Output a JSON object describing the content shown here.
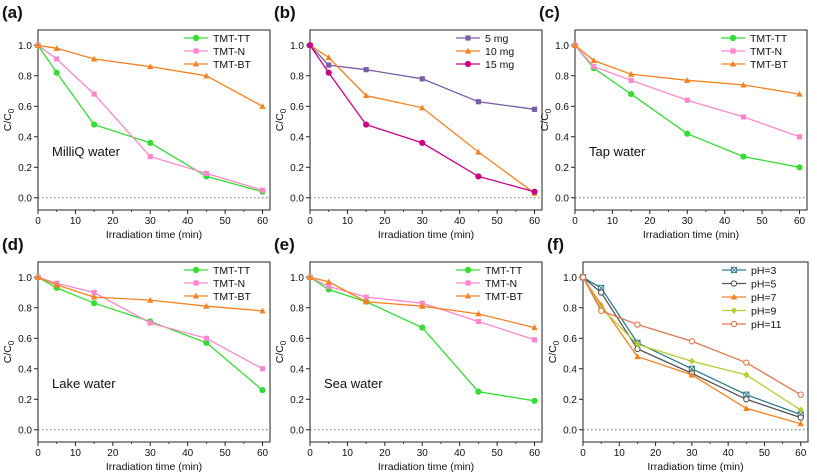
{
  "chart_data": [
    {
      "type": "line",
      "panel_label": "(a)",
      "annotation": "MilliQ water",
      "xlabel": "Irradiation time (min)",
      "ylabel": "C/C",
      "ylabel_sub": "0",
      "xlim": [
        0,
        62
      ],
      "ylim": [
        -0.08,
        1.1
      ],
      "xticks": [
        0,
        10,
        20,
        30,
        40,
        50,
        60
      ],
      "yticks": [
        0.0,
        0.2,
        0.4,
        0.6,
        0.8,
        1.0
      ],
      "reference_line": 0,
      "legend_position": "top-right",
      "series": [
        {
          "name": "TMT-TT",
          "color": "#33dd33",
          "marker": "circle",
          "x": [
            0,
            5,
            15,
            30,
            45,
            60
          ],
          "y": [
            1.0,
            0.82,
            0.48,
            0.36,
            0.14,
            0.04
          ]
        },
        {
          "name": "TMT-N",
          "color": "#ff88cc",
          "marker": "square",
          "x": [
            0,
            5,
            15,
            30,
            45,
            60
          ],
          "y": [
            1.0,
            0.91,
            0.68,
            0.27,
            0.16,
            0.05
          ]
        },
        {
          "name": "TMT-BT",
          "color": "#f58220",
          "marker": "triangle",
          "x": [
            0,
            5,
            15,
            30,
            45,
            60
          ],
          "y": [
            1.0,
            0.98,
            0.91,
            0.86,
            0.8,
            0.6
          ]
        }
      ]
    },
    {
      "type": "line",
      "panel_label": "(b)",
      "annotation": "",
      "xlabel": "Irradiation time (min)",
      "ylabel": "C/C",
      "ylabel_sub": "0",
      "xlim": [
        0,
        62
      ],
      "ylim": [
        -0.08,
        1.1
      ],
      "xticks": [
        0,
        10,
        20,
        30,
        40,
        50,
        60
      ],
      "yticks": [
        0.0,
        0.2,
        0.4,
        0.6,
        0.8,
        1.0
      ],
      "reference_line": 0,
      "legend_position": "top-right",
      "series": [
        {
          "name": "5 mg",
          "color": "#7b5ea7",
          "marker": "square",
          "x": [
            0,
            5,
            15,
            30,
            45,
            60
          ],
          "y": [
            1.0,
            0.87,
            0.84,
            0.78,
            0.63,
            0.58
          ]
        },
        {
          "name": "10 mg",
          "color": "#f58220",
          "marker": "triangle",
          "x": [
            0,
            5,
            15,
            30,
            45,
            60
          ],
          "y": [
            1.0,
            0.92,
            0.67,
            0.59,
            0.3,
            0.03
          ]
        },
        {
          "name": "15 mg",
          "color": "#cc0088",
          "marker": "circle",
          "x": [
            0,
            5,
            15,
            30,
            45,
            60
          ],
          "y": [
            1.0,
            0.82,
            0.48,
            0.36,
            0.14,
            0.04
          ]
        }
      ]
    },
    {
      "type": "line",
      "panel_label": "(c)",
      "annotation": "Tap water",
      "xlabel": "Irradiation time (min)",
      "ylabel": "C/C",
      "ylabel_sub": "0",
      "xlim": [
        0,
        62
      ],
      "ylim": [
        -0.08,
        1.1
      ],
      "xticks": [
        0,
        10,
        20,
        30,
        40,
        50,
        60
      ],
      "yticks": [
        0.0,
        0.2,
        0.4,
        0.6,
        0.8,
        1.0
      ],
      "reference_line": 0,
      "legend_position": "top-right",
      "series": [
        {
          "name": "TMT-TT",
          "color": "#33dd33",
          "marker": "circle",
          "x": [
            0,
            5,
            15,
            30,
            45,
            60
          ],
          "y": [
            1.0,
            0.85,
            0.68,
            0.42,
            0.27,
            0.2
          ]
        },
        {
          "name": "TMT-N",
          "color": "#ff88cc",
          "marker": "square",
          "x": [
            0,
            5,
            15,
            30,
            45,
            60
          ],
          "y": [
            1.0,
            0.86,
            0.77,
            0.64,
            0.53,
            0.4
          ]
        },
        {
          "name": "TMT-BT",
          "color": "#f58220",
          "marker": "triangle",
          "x": [
            0,
            5,
            15,
            30,
            45,
            60
          ],
          "y": [
            1.0,
            0.9,
            0.81,
            0.77,
            0.74,
            0.68
          ]
        }
      ]
    },
    {
      "type": "line",
      "panel_label": "(d)",
      "annotation": "Lake water",
      "xlabel": "Irradiation time (min)",
      "ylabel": "C/C",
      "ylabel_sub": "0",
      "xlim": [
        0,
        62
      ],
      "ylim": [
        -0.08,
        1.1
      ],
      "xticks": [
        0,
        10,
        20,
        30,
        40,
        50,
        60
      ],
      "yticks": [
        0.0,
        0.2,
        0.4,
        0.6,
        0.8,
        1.0
      ],
      "reference_line": 0,
      "legend_position": "top-right",
      "series": [
        {
          "name": "TMT-TT",
          "color": "#33dd33",
          "marker": "circle",
          "x": [
            0,
            5,
            15,
            30,
            45,
            60
          ],
          "y": [
            1.0,
            0.93,
            0.83,
            0.71,
            0.57,
            0.26
          ]
        },
        {
          "name": "TMT-N",
          "color": "#ff88cc",
          "marker": "square",
          "x": [
            0,
            5,
            15,
            30,
            45,
            60
          ],
          "y": [
            1.0,
            0.96,
            0.9,
            0.7,
            0.6,
            0.4
          ]
        },
        {
          "name": "TMT-BT",
          "color": "#f58220",
          "marker": "triangle",
          "x": [
            0,
            5,
            15,
            30,
            45,
            60
          ],
          "y": [
            1.0,
            0.95,
            0.87,
            0.85,
            0.81,
            0.78
          ]
        }
      ]
    },
    {
      "type": "line",
      "panel_label": "(e)",
      "annotation": "Sea water",
      "xlabel": "Irradiation time (min)",
      "ylabel": "C/C",
      "ylabel_sub": "0",
      "xlim": [
        0,
        62
      ],
      "ylim": [
        -0.08,
        1.1
      ],
      "xticks": [
        0,
        10,
        20,
        30,
        40,
        50,
        60
      ],
      "yticks": [
        0.0,
        0.2,
        0.4,
        0.6,
        0.8,
        1.0
      ],
      "reference_line": 0,
      "legend_position": "top-right",
      "series": [
        {
          "name": "TMT-TT",
          "color": "#33dd33",
          "marker": "circle",
          "x": [
            0,
            5,
            15,
            30,
            45,
            60
          ],
          "y": [
            1.0,
            0.92,
            0.84,
            0.67,
            0.25,
            0.19
          ]
        },
        {
          "name": "TMT-N",
          "color": "#ff88cc",
          "marker": "square",
          "x": [
            0,
            5,
            15,
            30,
            45,
            60
          ],
          "y": [
            1.0,
            0.94,
            0.87,
            0.83,
            0.71,
            0.59
          ]
        },
        {
          "name": "TMT-BT",
          "color": "#f58220",
          "marker": "triangle",
          "x": [
            0,
            5,
            15,
            30,
            45,
            60
          ],
          "y": [
            1.0,
            0.97,
            0.84,
            0.81,
            0.76,
            0.67
          ]
        }
      ]
    },
    {
      "type": "line",
      "panel_label": "(f)",
      "annotation": "",
      "xlabel": "Irradiation time (min)",
      "ylabel": "C/C",
      "ylabel_sub": "0",
      "xlim": [
        0,
        62
      ],
      "ylim": [
        -0.08,
        1.1
      ],
      "xticks": [
        0,
        10,
        20,
        30,
        40,
        50,
        60
      ],
      "yticks": [
        0.0,
        0.2,
        0.4,
        0.6,
        0.8,
        1.0
      ],
      "reference_line": 0,
      "legend_position": "top-right",
      "series": [
        {
          "name": "pH=3",
          "color": "#2e7d8c",
          "marker": "x-square",
          "x": [
            0,
            5,
            15,
            30,
            45,
            60
          ],
          "y": [
            1.0,
            0.93,
            0.57,
            0.4,
            0.23,
            0.1
          ]
        },
        {
          "name": "pH=5",
          "color": "#555555",
          "marker": "circle-open",
          "x": [
            0,
            5,
            15,
            30,
            45,
            60
          ],
          "y": [
            1.0,
            0.9,
            0.53,
            0.37,
            0.2,
            0.08
          ]
        },
        {
          "name": "pH=7",
          "color": "#f58220",
          "marker": "triangle",
          "x": [
            0,
            5,
            15,
            30,
            45,
            60
          ],
          "y": [
            1.0,
            0.82,
            0.48,
            0.36,
            0.14,
            0.04
          ]
        },
        {
          "name": "pH=9",
          "color": "#b5cc33",
          "marker": "diamond",
          "x": [
            0,
            5,
            15,
            30,
            45,
            60
          ],
          "y": [
            1.0,
            0.8,
            0.56,
            0.45,
            0.36,
            0.13
          ]
        },
        {
          "name": "pH=11",
          "color": "#e07850",
          "marker": "circle-open",
          "x": [
            0,
            5,
            15,
            30,
            45,
            60
          ],
          "y": [
            1.0,
            0.78,
            0.69,
            0.58,
            0.44,
            0.23
          ]
        }
      ]
    }
  ]
}
